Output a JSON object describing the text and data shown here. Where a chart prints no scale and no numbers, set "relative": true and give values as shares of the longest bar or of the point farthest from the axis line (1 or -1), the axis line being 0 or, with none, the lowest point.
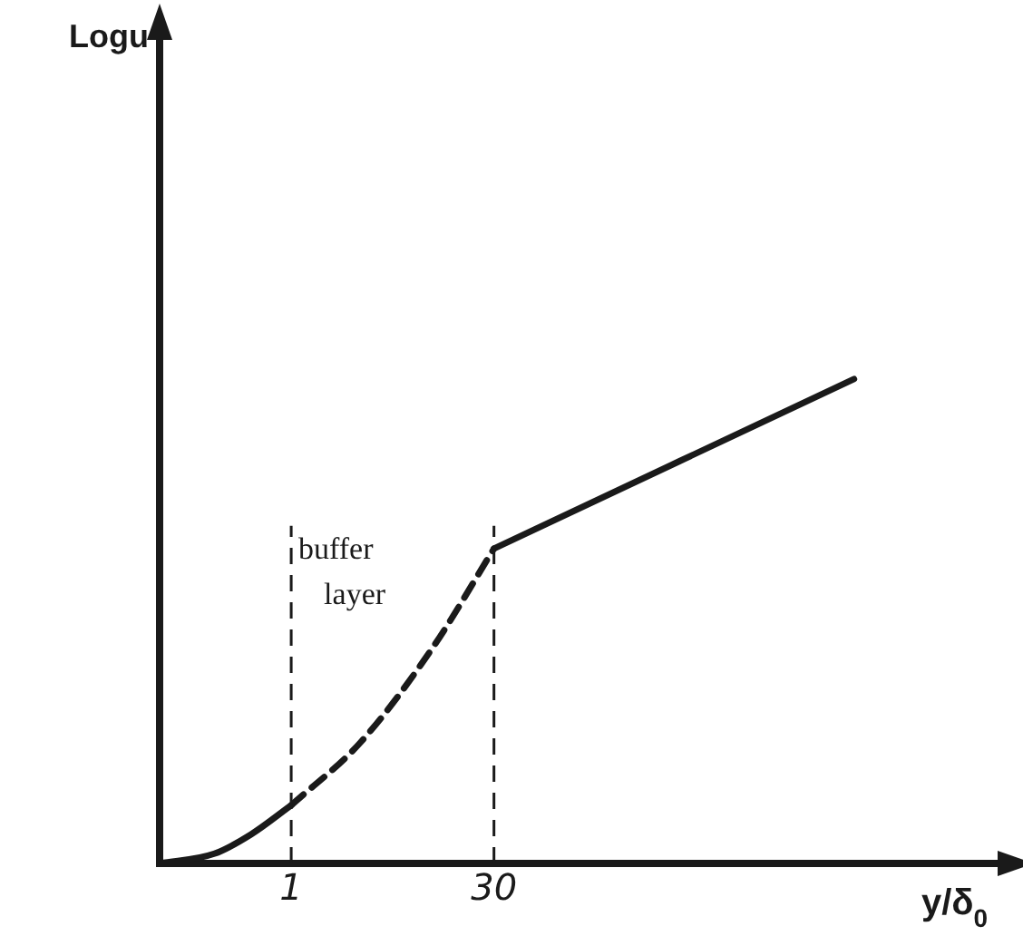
{
  "chart_data": {
    "type": "line",
    "relative": true,
    "xlabel": "y/δ$_{0}$",
    "log": "x",
    "xlim": [
      0.11,
      140000
    ],
    "xticks": [
      1,
      30
    ],
    "grid": false,
    "legend": false,
    "marker": "none",
    "series": [
      {
        "color": "#1a1a1a",
        "line_style": "solid",
        "x": [
          0.11,
          0.275,
          0.51,
          1
        ],
        "values": [
          0,
          0.02,
          0.06,
          0.12
        ]
      },
      {
        "color": "#1a1a1a",
        "line_style": "dashed",
        "x": [
          1,
          3.2,
          11,
          30
        ],
        "values": [
          0.12,
          0.25,
          0.45,
          0.65
        ]
      },
      {
        "color": "#1a1a1a",
        "line_style": "solid",
        "x": [
          30,
          12600
        ],
        "values": [
          0.65,
          1
        ]
      }
    ],
    "ref_lines": [
      {
        "axis": "x",
        "value": 1,
        "line_style": "dashed",
        "color": "#1a1a1a"
      },
      {
        "axis": "x",
        "value": 30,
        "line_style": "dashed",
        "color": "#1a1a1a"
      }
    ],
    "annotations": [
      "Logu",
      "buffer layer"
    ]
  }
}
